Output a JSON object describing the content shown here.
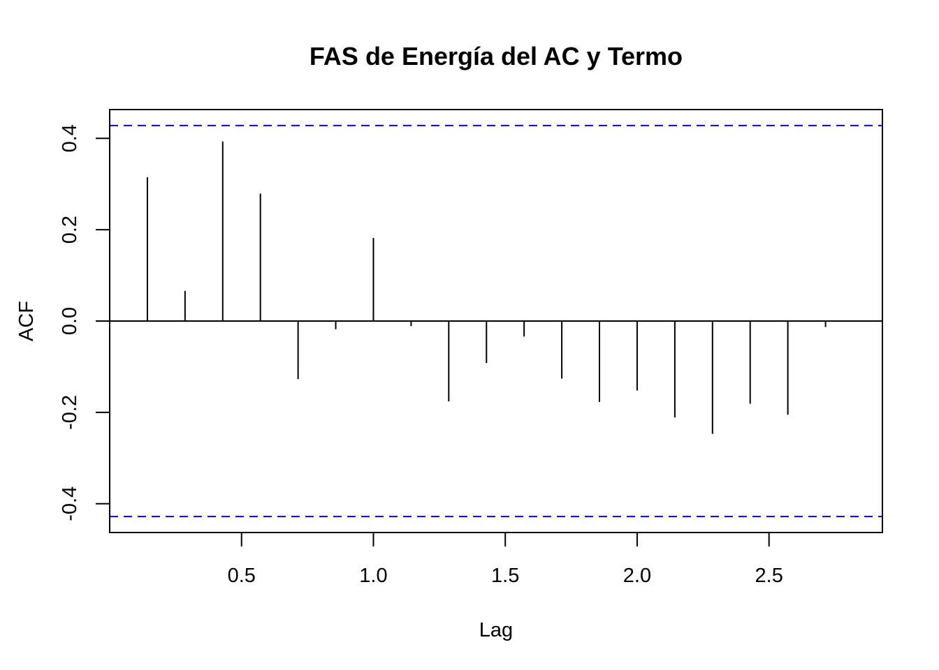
{
  "chart_data": {
    "type": "bar",
    "title": "FAS de Energía del AC y Termo",
    "xlabel": "Lag",
    "ylabel": "ACF",
    "xlim": [
      0.0,
      2.93
    ],
    "ylim": [
      -0.463,
      0.463
    ],
    "x_ticks": [
      0.5,
      1.0,
      1.5,
      2.0,
      2.5
    ],
    "x_tick_labels": [
      "0.5",
      "1.0",
      "1.5",
      "2.0",
      "2.5"
    ],
    "y_ticks": [
      -0.4,
      -0.2,
      0.0,
      0.2,
      0.4
    ],
    "y_tick_labels": [
      "-0.4",
      "-0.2",
      "0.0",
      "0.2",
      "0.4"
    ],
    "lags": [
      0.1429,
      0.2857,
      0.4286,
      0.5714,
      0.7143,
      0.8571,
      1.0,
      1.1429,
      1.2857,
      1.4286,
      1.5714,
      1.7143,
      1.8571,
      2.0,
      2.1429,
      2.2857,
      2.4286,
      2.5714,
      2.7143,
      2.8571
    ],
    "values": [
      0.315,
      0.066,
      0.393,
      0.279,
      -0.127,
      -0.018,
      0.182,
      -0.011,
      -0.176,
      -0.092,
      -0.034,
      -0.126,
      -0.177,
      -0.152,
      -0.211,
      -0.247,
      -0.181,
      -0.205,
      -0.013,
      0.0
    ],
    "confidence_bound": 0.428,
    "grid": false,
    "colors": {
      "bars": "#000000",
      "confidence": "#0000ff",
      "axes": "#000000"
    }
  }
}
